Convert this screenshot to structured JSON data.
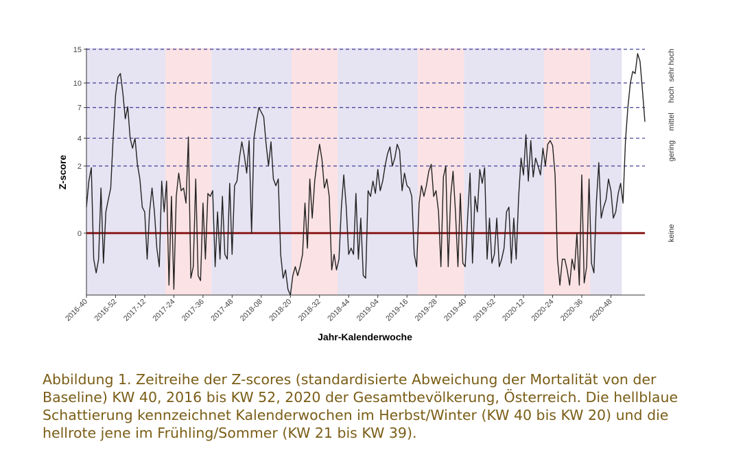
{
  "chart_data": {
    "type": "line",
    "xlabel": "Jahr-Kalenderwoche",
    "ylabel": "Z-score",
    "y_transform": "sqrt",
    "ylim": [
      -1.7,
      15.2
    ],
    "y_ticks": [
      0,
      2,
      4,
      7,
      10,
      15
    ],
    "x_ticks": [
      "2016-40",
      "2016-52",
      "2017-12",
      "2017-24",
      "2017-36",
      "2017-48",
      "2018-08",
      "2018-20",
      "2018-32",
      "2018-44",
      "2019-04",
      "2019-16",
      "2019-28",
      "2019-40",
      "2019-52",
      "2020-12",
      "2020-24",
      "2020-36",
      "2020-48"
    ],
    "reference_lines": [
      2,
      4,
      7,
      10,
      15
    ],
    "baseline": 0,
    "category_labels": [
      {
        "text": "keine",
        "y": 0
      },
      {
        "text": "gering",
        "y": 3
      },
      {
        "text": "mittel",
        "y": 5.5
      },
      {
        "text": "hoch",
        "y": 8.5
      },
      {
        "text": "sehr hoch",
        "y": 12.5
      }
    ],
    "seasons": [
      {
        "label": "Herbst/Winter",
        "from": "2016-40",
        "to": "2017-20",
        "color": "#e6e3f2"
      },
      {
        "label": "Frühling/Sommer",
        "from": "2017-21",
        "to": "2017-39",
        "color": "#fbe2e4"
      },
      {
        "label": "Herbst/Winter",
        "from": "2017-40",
        "to": "2018-20",
        "color": "#e6e3f2"
      },
      {
        "label": "Frühling/Sommer",
        "from": "2018-21",
        "to": "2018-39",
        "color": "#fbe2e4"
      },
      {
        "label": "Herbst/Winter",
        "from": "2018-40",
        "to": "2019-20",
        "color": "#e6e3f2"
      },
      {
        "label": "Frühling/Sommer",
        "from": "2019-21",
        "to": "2019-39",
        "color": "#fbe2e4"
      },
      {
        "label": "Herbst/Winter",
        "from": "2019-40",
        "to": "2020-20",
        "color": "#e6e3f2"
      },
      {
        "label": "Frühling/Sommer",
        "from": "2020-21",
        "to": "2020-39",
        "color": "#fbe2e4"
      },
      {
        "label": "Herbst/Winter",
        "from": "2020-40",
        "to": "2020-52",
        "color": "#e6e3f2"
      }
    ],
    "series": [
      {
        "color": "#222222",
        "values": [
          0.3,
          1.2,
          1.9,
          -0.3,
          -0.7,
          -0.3,
          0.9,
          -0.4,
          0.2,
          0.5,
          0.9,
          4.0,
          8.5,
          10.8,
          11.3,
          8.7,
          5.8,
          7.1,
          4.0,
          3.2,
          4.0,
          2.1,
          1.3,
          0.3,
          0.2,
          -0.3,
          0.2,
          0.9,
          0.2,
          -0.1,
          -0.5,
          1.2,
          0.2,
          1.2,
          -1.2,
          0.6,
          -1.4,
          0.6,
          1.6,
          0.8,
          0.9,
          0.4,
          4.1,
          -0.9,
          -0.5,
          1.3,
          -0.8,
          -1.0,
          0.4,
          -0.3,
          0.7,
          0.6,
          0.8,
          -0.5,
          0.2,
          -0.3,
          0.6,
          -0.2,
          -0.3,
          1.1,
          -0.2,
          1.0,
          1.2,
          2.5,
          3.7,
          2.7,
          1.6,
          3.8,
          0.0,
          4.0,
          5.5,
          7.0,
          6.5,
          6.0,
          3.5,
          2.0,
          3.7,
          1.3,
          1.0,
          1.3,
          -0.2,
          -0.9,
          -0.6,
          -1.4,
          -1.7,
          -0.8,
          -0.5,
          -0.8,
          -0.5,
          -0.2,
          0.4,
          -0.1,
          1.3,
          0.1,
          1.2,
          2.3,
          3.5,
          2.4,
          0.9,
          1.3,
          0.6,
          -0.6,
          -0.2,
          -0.6,
          -0.3,
          0.3,
          1.5,
          0.3,
          -0.2,
          -0.1,
          -0.2,
          0.7,
          -0.3,
          0.1,
          -0.8,
          -0.9,
          0.8,
          0.6,
          1.2,
          0.7,
          1.8,
          0.8,
          1.2,
          2.0,
          2.8,
          3.3,
          2.0,
          2.5,
          3.5,
          3.0,
          0.8,
          1.6,
          1.0,
          0.9,
          0.6,
          -0.2,
          -0.5,
          0.4,
          1.0,
          0.6,
          1.0,
          1.7,
          2.1,
          0.6,
          0.8,
          0.2,
          -0.5,
          1.4,
          2.0,
          -0.5,
          0.6,
          1.7,
          0.2,
          -0.5,
          0.7,
          -0.4,
          -0.5,
          0.1,
          1.6,
          -0.4,
          0.6,
          0.2,
          1.8,
          1.1,
          1.9,
          -0.3,
          0.1,
          -0.4,
          -0.2,
          0.1,
          -0.5,
          -0.3,
          -0.1,
          0.2,
          0.3,
          -0.4,
          0.1,
          -0.3,
          0.6,
          2.5,
          1.5,
          4.3,
          1.2,
          3.8,
          1.4,
          2.5,
          2.0,
          1.5,
          3.2,
          2.0,
          3.5,
          3.8,
          3.4,
          1.5,
          -0.3,
          -1.2,
          -0.3,
          -0.3,
          -0.6,
          -1.2,
          -0.3,
          -0.6,
          0.0,
          -1.2,
          1.5,
          -1.1,
          -0.5,
          1.3,
          -0.4,
          -0.7,
          0.4,
          2.2,
          0.1,
          0.3,
          0.5,
          1.3,
          0.8,
          0.1,
          0.2,
          0.7,
          1.1,
          0.4,
          3.8,
          7.0,
          10.0,
          11.6,
          11.3,
          14.3,
          13.1,
          9.0,
          5.5
        ]
      }
    ]
  },
  "caption": "Abbildung 1. Zeitreihe der Z-scores (standardisierte Abweichung der Mortalität von der Baseline) KW 40, 2016 bis KW 52, 2020 der Gesamtbevölkerung, Österreich. Die hellblaue Schattierung kennzeichnet Kalenderwochen im Herbst/Winter (KW 40 bis KW 20) und die hellrote jene im Frühling/Sommer (KW 21 bis KW 39)."
}
